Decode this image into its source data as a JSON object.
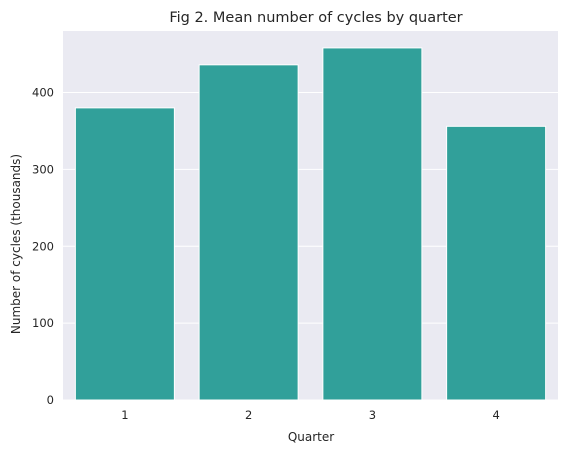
{
  "chart_data": {
    "type": "bar",
    "title": "Fig 2. Mean number of cycles by quarter",
    "xlabel": "Quarter",
    "ylabel": "Number of cycles (thousands)",
    "categories": [
      "1",
      "2",
      "3",
      "4"
    ],
    "values": [
      380,
      436,
      458,
      356
    ],
    "ylim": [
      0,
      480
    ],
    "yticks": [
      0,
      100,
      200,
      300,
      400
    ],
    "grid": true,
    "legend": "none",
    "colors": {
      "bar": "#31a09a",
      "background": "#eaeaf2",
      "grid": "#ffffff",
      "text": "#262626"
    }
  }
}
